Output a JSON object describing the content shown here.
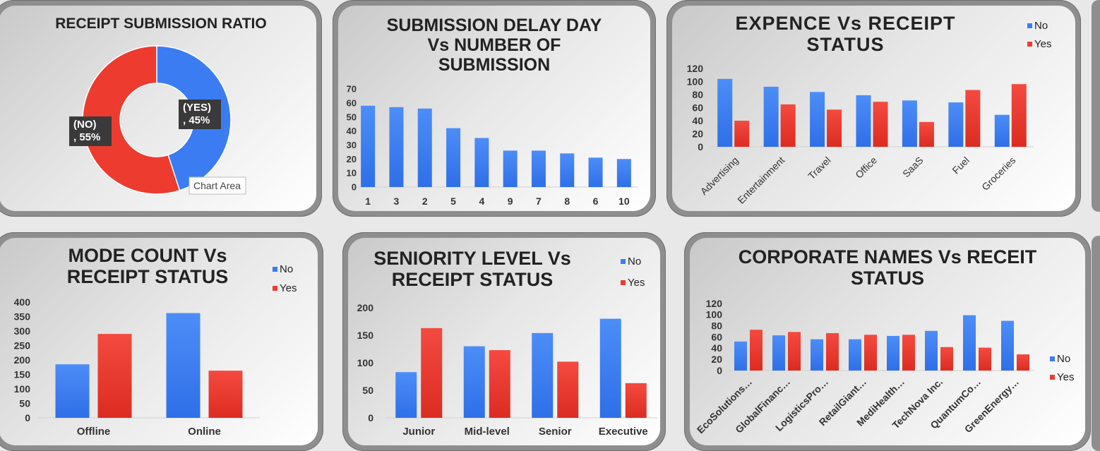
{
  "colors": {
    "no": "#3b7cf3",
    "yes": "#ee3b30"
  },
  "charts": {
    "ratio": {
      "title": "RECEIPT SUBMISSION RATIO",
      "tooltip": "Chart Area",
      "chart_data": {
        "type": "pie",
        "labels": [
          "(YES)\n, 45%",
          "(NO)\n, 55%"
        ],
        "values": [
          45,
          55
        ],
        "donut": true
      }
    },
    "delay": {
      "title": "SUBMISSION DELAY DAY\nVs NUMBER OF\nSUBMISSION",
      "chart_data": {
        "type": "bar",
        "categories": [
          "1",
          "3",
          "2",
          "5",
          "4",
          "9",
          "7",
          "8",
          "6",
          "10"
        ],
        "values": [
          58,
          57,
          56,
          42,
          35,
          26,
          26,
          24,
          21,
          20
        ],
        "ylim": [
          0,
          70
        ],
        "yticks": [
          "0",
          "10",
          "20",
          "30",
          "40",
          "50",
          "60",
          "70"
        ],
        "legend": "none"
      }
    },
    "expense": {
      "title": "EXPENCE Vs RECEIPT\nSTATUS",
      "chart_data": {
        "type": "bar",
        "categories": [
          "Advertising",
          "Entertainment",
          "Travel",
          "Office",
          "SaaS",
          "Fuel",
          "Groceries"
        ],
        "series": [
          {
            "name": "No",
            "values": [
              104,
              92,
              84,
              79,
              71,
              68,
              49
            ]
          },
          {
            "name": "Yes",
            "values": [
              40,
              65,
              57,
              69,
              38,
              87,
              96
            ]
          }
        ],
        "ylim": [
          0,
          120
        ],
        "yticks": [
          "0",
          "20",
          "40",
          "60",
          "80",
          "100",
          "120"
        ],
        "legend": "top-right"
      }
    },
    "mode": {
      "title": "MODE COUNT Vs\nRECEIPT STATUS",
      "chart_data": {
        "type": "bar",
        "categories": [
          "Offline",
          "Online"
        ],
        "series": [
          {
            "name": "No",
            "values": [
              185,
              362
            ]
          },
          {
            "name": "Yes",
            "values": [
              290,
              163
            ]
          }
        ],
        "ylim": [
          0,
          400
        ],
        "yticks": [
          "0",
          "50",
          "100",
          "150",
          "200",
          "250",
          "300",
          "350",
          "400"
        ],
        "legend": "top-right"
      }
    },
    "seniority": {
      "title": "SENIORITY LEVEL Vs\nRECEIPT STATUS",
      "chart_data": {
        "type": "bar",
        "categories": [
          "Junior",
          "Mid-level",
          "Senior",
          "Executive"
        ],
        "series": [
          {
            "name": "No",
            "values": [
              83,
              130,
              154,
              180
            ]
          },
          {
            "name": "Yes",
            "values": [
              163,
              123,
              102,
              63
            ]
          }
        ],
        "ylim": [
          0,
          200
        ],
        "yticks": [
          "0",
          "50",
          "100",
          "150",
          "200"
        ],
        "legend": "top-right"
      }
    },
    "corporate": {
      "title": "CORPORATE NAMES Vs RECEIT\nSTATUS",
      "chart_data": {
        "type": "bar",
        "categories": [
          "EcoSolutions…",
          "GlobalFinanc…",
          "LogisticsPro…",
          "RetailGiant…",
          "MediHealth…",
          "TechNova Inc.",
          "QuantumCo…",
          "GreenEnergy…"
        ],
        "series": [
          {
            "name": "No",
            "values": [
              52,
              63,
              56,
              56,
              62,
              71,
              99,
              89
            ]
          },
          {
            "name": "Yes",
            "values": [
              73,
              69,
              67,
              64,
              64,
              42,
              41,
              29
            ]
          }
        ],
        "ylim": [
          0,
          120
        ],
        "yticks": [
          "0",
          "20",
          "40",
          "60",
          "80",
          "100",
          "120"
        ],
        "legend": "right"
      }
    }
  }
}
